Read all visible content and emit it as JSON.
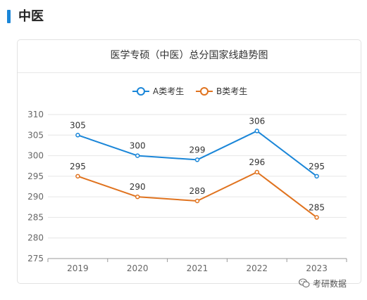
{
  "section": {
    "title": "中医"
  },
  "card": {
    "title": "医学专硕（中医）总分国家线趋势图"
  },
  "watermark": {
    "text": "考研数据",
    "icon": "wechat-icon"
  },
  "colors": {
    "accent": "#1a86d8",
    "series_a": "#1a86d8",
    "series_b": "#e0731f",
    "grid": "#e6e6e6",
    "axis": "#666666"
  },
  "chart_data": {
    "type": "line",
    "title": "医学专硕（中医）总分国家线趋势图",
    "x": [
      "2019",
      "2020",
      "2021",
      "2022",
      "2023"
    ],
    "yticks": [
      275,
      280,
      285,
      290,
      295,
      300,
      305,
      310
    ],
    "ylim": [
      275,
      310
    ],
    "grid": true,
    "legend": "top-center",
    "series": [
      {
        "name": "A类考生",
        "values": [
          305,
          300,
          299,
          306,
          295
        ],
        "color": "#1a86d8"
      },
      {
        "name": "B类考生",
        "values": [
          295,
          290,
          289,
          296,
          285
        ],
        "color": "#e0731f"
      }
    ]
  }
}
